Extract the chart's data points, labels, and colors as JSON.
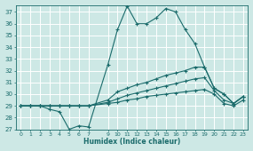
{
  "xlabel": "Humidex (Indice chaleur)",
  "bg_color": "#cde8e5",
  "grid_color": "#b0d0cd",
  "line_color": "#1a6b6b",
  "xlim": [
    -0.5,
    23.5
  ],
  "ylim": [
    27,
    37.6
  ],
  "xticks": [
    0,
    1,
    2,
    3,
    4,
    5,
    6,
    7,
    9,
    10,
    11,
    12,
    13,
    14,
    15,
    16,
    17,
    18,
    19,
    20,
    21,
    22,
    23
  ],
  "yticks": [
    27,
    28,
    29,
    30,
    31,
    32,
    33,
    34,
    35,
    36,
    37
  ],
  "series": [
    {
      "x": [
        0,
        1,
        2,
        3,
        4,
        5,
        6,
        7,
        9,
        10,
        11,
        12,
        13,
        14,
        15,
        16,
        17,
        18,
        19,
        20,
        21,
        22,
        23
      ],
      "y": [
        29.0,
        29.0,
        29.0,
        28.7,
        28.5,
        27.0,
        27.3,
        27.2,
        32.5,
        35.5,
        37.5,
        36.0,
        36.0,
        36.5,
        37.3,
        37.0,
        35.5,
        34.3,
        32.3,
        30.5,
        30.0,
        29.2,
        29.8
      ]
    },
    {
      "x": [
        0,
        1,
        2,
        3,
        4,
        5,
        6,
        7,
        9,
        10,
        11,
        12,
        13,
        14,
        15,
        16,
        17,
        18,
        19,
        20,
        21,
        22,
        23
      ],
      "y": [
        29.0,
        29.0,
        29.0,
        29.0,
        29.0,
        29.0,
        29.0,
        29.0,
        29.5,
        30.2,
        30.5,
        30.8,
        31.0,
        31.3,
        31.6,
        31.8,
        32.0,
        32.3,
        32.3,
        30.5,
        30.0,
        29.2,
        29.8
      ]
    },
    {
      "x": [
        0,
        1,
        2,
        3,
        4,
        5,
        6,
        7,
        9,
        10,
        11,
        12,
        13,
        14,
        15,
        16,
        17,
        18,
        19,
        20,
        21,
        22,
        23
      ],
      "y": [
        29.0,
        29.0,
        29.0,
        29.0,
        29.0,
        29.0,
        29.0,
        29.0,
        29.3,
        29.6,
        29.9,
        30.1,
        30.3,
        30.5,
        30.7,
        30.9,
        31.1,
        31.3,
        31.4,
        30.3,
        29.5,
        29.2,
        29.8
      ]
    },
    {
      "x": [
        0,
        1,
        2,
        3,
        4,
        5,
        6,
        7,
        9,
        10,
        11,
        12,
        13,
        14,
        15,
        16,
        17,
        18,
        19,
        20,
        21,
        22,
        23
      ],
      "y": [
        29.0,
        29.0,
        29.0,
        29.0,
        29.0,
        29.0,
        29.0,
        29.0,
        29.2,
        29.3,
        29.5,
        29.6,
        29.8,
        29.9,
        30.0,
        30.1,
        30.2,
        30.3,
        30.4,
        30.0,
        29.2,
        29.0,
        29.5
      ]
    }
  ]
}
